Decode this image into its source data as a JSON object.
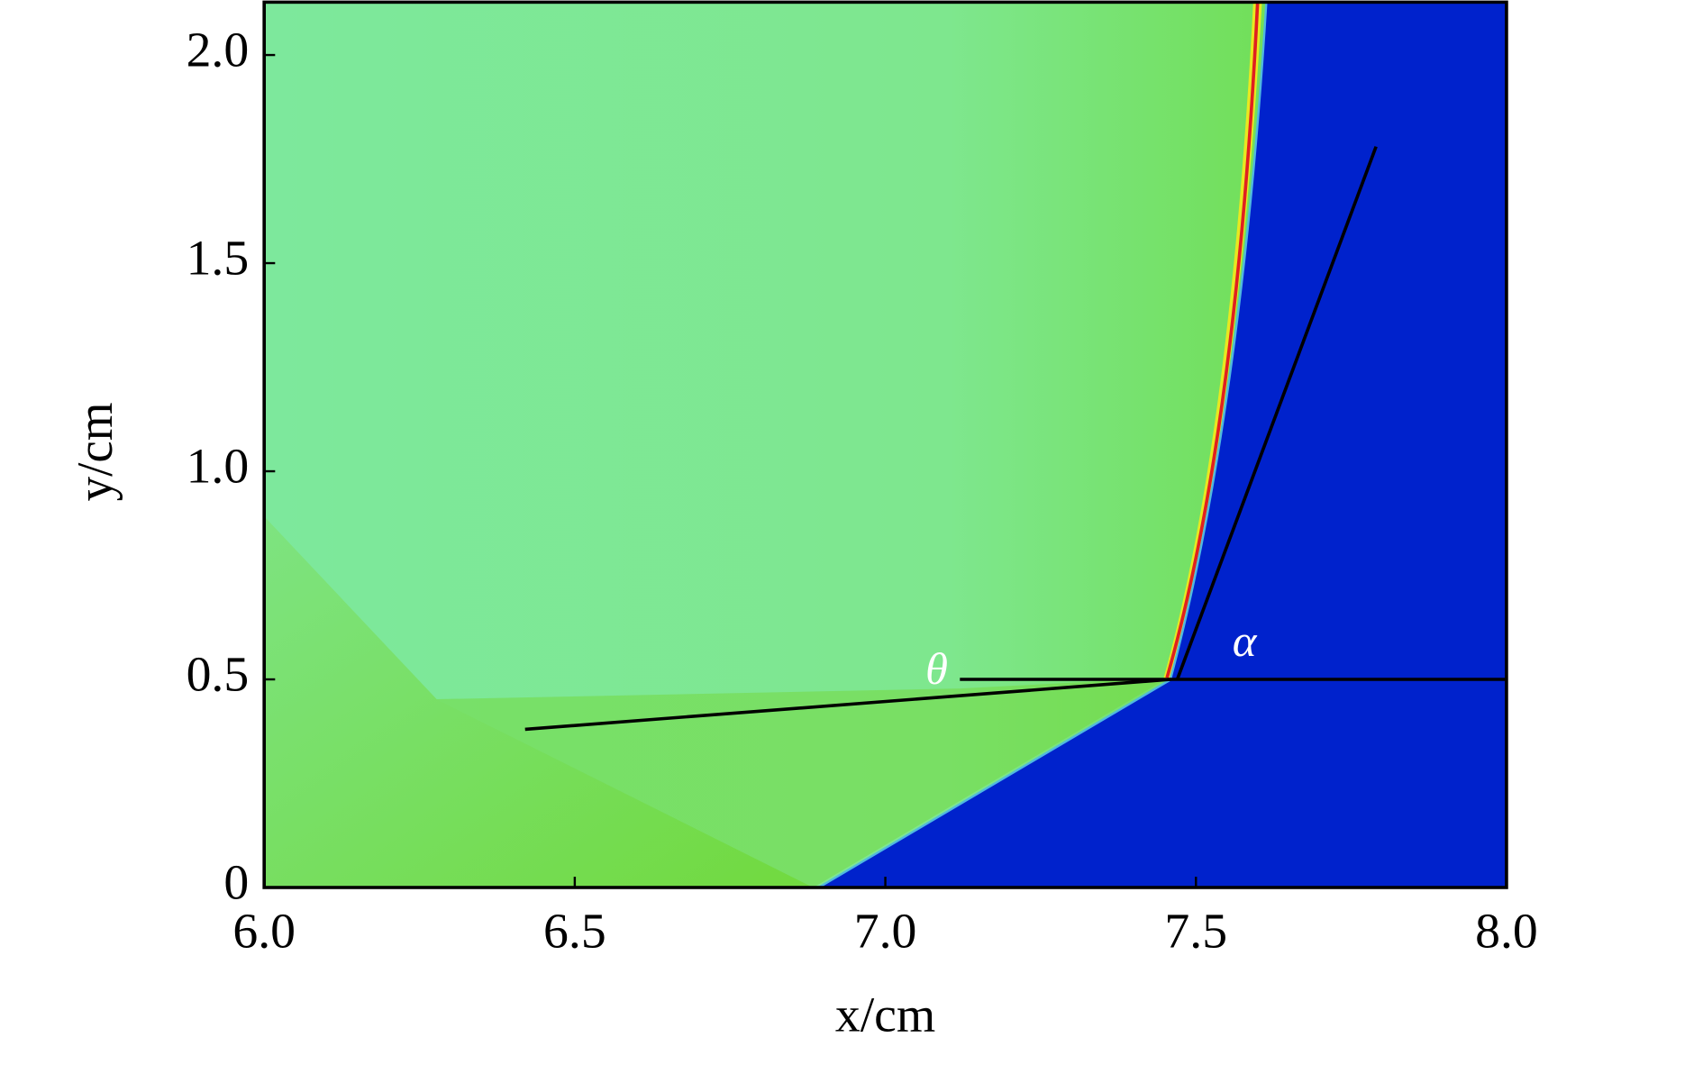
{
  "chart_data": {
    "type": "field",
    "xlabel": "x/cm",
    "ylabel": "y/cm",
    "xlim": [
      6.0,
      8.0
    ],
    "ylim": [
      0,
      2.127
    ],
    "xticks": [
      {
        "value": 6.0,
        "label": "6.0"
      },
      6.5,
      {
        "value": 7.0,
        "label": "7.0"
      },
      7.5,
      {
        "value": 8.0,
        "label": "8.0"
      }
    ],
    "yticks": [
      0,
      0.5,
      {
        "value": 1.0,
        "label": "1.0"
      },
      1.5,
      {
        "value": 2.0,
        "label": "2.0"
      }
    ],
    "lines": [
      {
        "color": "#000000",
        "x": [
          6.42,
          7.46
        ],
        "y": [
          0.38,
          0.5
        ]
      },
      {
        "color": "#000000",
        "x": [
          7.12,
          8.0
        ],
        "y": [
          0.5,
          0.5
        ]
      },
      {
        "color": "#000000",
        "x": [
          7.47,
          7.79
        ],
        "y": [
          0.5,
          1.78
        ]
      }
    ],
    "annotations": [
      "θ",
      "α"
    ]
  }
}
